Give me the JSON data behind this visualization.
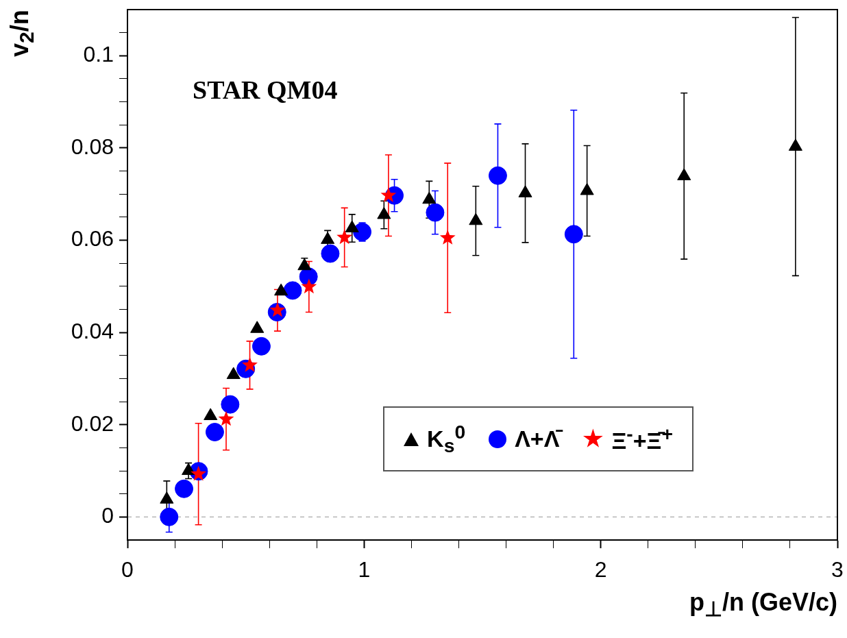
{
  "chart_data": {
    "type": "scatter",
    "xlabel": "p$_{⊥}$/n (GeV/c)",
    "ylabel": "v$_{2}$/n",
    "annotations": [
      "STAR QM04"
    ],
    "xlim": [
      0,
      3
    ],
    "ylim": [
      -0.005,
      0.11
    ],
    "xticks": [
      0,
      {
        "value": 0.2,
        "label": null
      },
      {
        "value": 0.4,
        "label": null
      },
      {
        "value": 0.6,
        "label": null
      },
      {
        "value": 0.8,
        "label": null
      },
      1,
      {
        "value": 1.2,
        "label": null
      },
      {
        "value": 1.4,
        "label": null
      },
      {
        "value": 1.6,
        "label": null
      },
      {
        "value": 1.8,
        "label": null
      },
      2,
      {
        "value": 2.2,
        "label": null
      },
      {
        "value": 2.4,
        "label": null
      },
      {
        "value": 2.6,
        "label": null
      },
      {
        "value": 2.8,
        "label": null
      },
      3
    ],
    "yticks": [
      0,
      {
        "value": 0.005,
        "label": null
      },
      {
        "value": 0.01,
        "label": null
      },
      {
        "value": 0.015,
        "label": null
      },
      0.02,
      {
        "value": 0.025,
        "label": null
      },
      {
        "value": 0.03,
        "label": null
      },
      {
        "value": 0.035,
        "label": null
      },
      0.04,
      {
        "value": 0.045,
        "label": null
      },
      {
        "value": 0.05,
        "label": null
      },
      {
        "value": 0.055,
        "label": null
      },
      0.06,
      {
        "value": 0.065,
        "label": null
      },
      {
        "value": 0.07,
        "label": null
      },
      {
        "value": 0.075,
        "label": null
      },
      0.08,
      {
        "value": 0.085,
        "label": null
      },
      {
        "value": 0.09,
        "label": null
      },
      {
        "value": 0.095,
        "label": null
      },
      0.1,
      {
        "value": 0.105,
        "label": null
      }
    ],
    "grid": false,
    "legend": "bottom right",
    "ref_lines": [
      {
        "axis": "y",
        "value": 0,
        "color": "#aaaaaa",
        "line_style": "dashed"
      }
    ],
    "series": [
      {
        "name": "K$_{s}$$^{0}$",
        "color": "#000000",
        "marker": "triangle",
        "x": [
          0.166,
          0.258,
          0.351,
          0.448,
          0.548,
          0.649,
          0.748,
          0.846,
          0.949,
          1.084,
          1.275,
          1.472,
          1.681,
          1.942,
          2.352,
          2.823
        ],
        "values": [
          0.0038,
          0.01,
          0.0219,
          0.0308,
          0.0408,
          0.0489,
          0.0544,
          0.0601,
          0.0626,
          0.0655,
          0.0688,
          0.0642,
          0.0702,
          0.0707,
          0.0739,
          0.0803
        ],
        "errors": [
          0.004,
          0.0017,
          null,
          null,
          null,
          null,
          0.0017,
          0.002,
          0.003,
          0.003,
          0.004,
          0.0075,
          0.0107,
          0.0098,
          0.018,
          0.028
        ]
      },
      {
        "name": "Λ+Λ̄",
        "color": "#0000ff",
        "marker": "circle",
        "x": [
          0.176,
          0.239,
          0.301,
          0.369,
          0.434,
          0.5,
          0.566,
          0.632,
          0.698,
          0.765,
          0.857,
          0.992,
          1.128,
          1.3,
          1.565,
          1.886
        ],
        "values": [
          0,
          0.0061,
          0.0099,
          0.0184,
          0.0244,
          0.0321,
          0.037,
          0.0444,
          0.0491,
          0.0521,
          0.0571,
          0.0618,
          0.0697,
          0.066,
          0.074,
          0.0613
        ],
        "errors": [
          0.0033,
          null,
          null,
          null,
          null,
          null,
          null,
          null,
          null,
          null,
          null,
          0.002,
          0.0035,
          0.0047,
          0.0112,
          0.0269
        ]
      },
      {
        "name": "Ξ$^{-}$+Ξ̄$^{+}$",
        "color": "#ff0000",
        "marker": "star",
        "x": [
          0.3,
          0.417,
          0.517,
          0.634,
          0.767,
          0.917,
          1.103,
          1.353
        ],
        "values": [
          0.0093,
          0.0212,
          0.0329,
          0.0448,
          0.0499,
          0.0606,
          0.0697,
          0.0605
        ],
        "errors": [
          0.011,
          0.0067,
          0.0052,
          0.0045,
          0.0055,
          0.0064,
          0.0088,
          0.0162
        ]
      }
    ]
  }
}
